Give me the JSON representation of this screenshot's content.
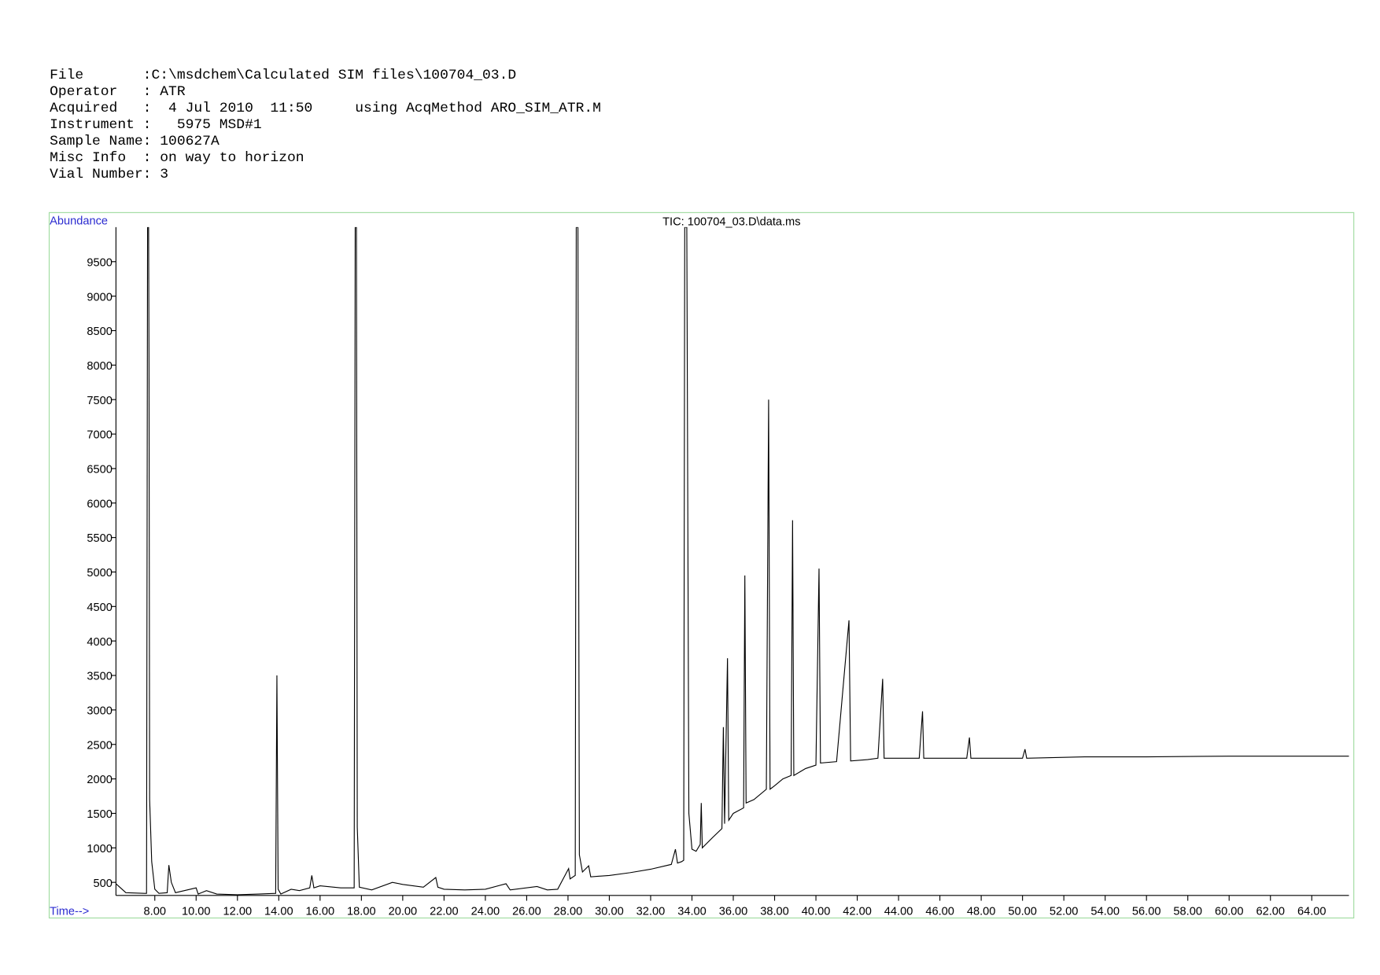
{
  "header": {
    "lines": [
      "File       :C:\\msdchem\\Calculated SIM files\\100704_03.D",
      "Operator   : ATR",
      "Acquired   :  4 Jul 2010  11:50     using AcqMethod ARO_SIM_ATR.M",
      "Instrument :   5975 MSD#1",
      "Sample Name: 100627A",
      "Misc Info  : on way to horizon",
      "Vial Number: 3"
    ]
  },
  "chart_data": {
    "type": "line",
    "title": "TIC: 100704_03.D\\data.ms",
    "y_label": "Abundance",
    "x_label": "Time-->",
    "color": "#000000",
    "x": [
      6.12,
      6.6,
      7.5,
      7.6,
      7.65,
      7.7,
      7.72,
      7.75,
      7.85,
      8.0,
      8.2,
      8.6,
      8.68,
      8.8,
      9.0,
      10.0,
      10.1,
      10.5,
      11.0,
      12.0,
      13.0,
      13.85,
      13.91,
      13.97,
      14.1,
      14.6,
      15.0,
      15.5,
      15.6,
      15.7,
      16.0,
      17.0,
      17.65,
      17.7,
      17.76,
      17.8,
      17.9,
      18.5,
      19.5,
      20.0,
      21.0,
      21.6,
      21.7,
      22.0,
      23.0,
      24.0,
      25.0,
      25.2,
      26.5,
      27.0,
      27.5,
      28.03,
      28.1,
      28.35,
      28.4,
      28.48,
      28.55,
      28.7,
      29.0,
      29.1,
      30.0,
      31.0,
      32.0,
      33.0,
      33.2,
      33.3,
      33.5,
      33.6,
      33.65,
      33.75,
      33.85,
      34.0,
      34.2,
      34.4,
      34.45,
      34.5,
      35.0,
      35.45,
      35.52,
      35.58,
      35.72,
      35.78,
      36.0,
      36.5,
      36.56,
      36.62,
      37.0,
      37.6,
      37.71,
      37.78,
      38.0,
      38.4,
      38.8,
      38.87,
      38.93,
      39.5,
      40.0,
      40.15,
      40.22,
      41.0,
      41.6,
      41.68,
      42.5,
      43.0,
      43.23,
      43.3,
      45.0,
      45.16,
      45.22,
      47.3,
      47.43,
      47.5,
      50.0,
      50.12,
      50.2,
      53.0,
      56.0,
      60.0,
      65.8
    ],
    "values": [
      480,
      350,
      340,
      340,
      10000,
      10000,
      8000,
      1700,
      800,
      400,
      340,
      350,
      750,
      500,
      350,
      420,
      330,
      380,
      330,
      320,
      330,
      340,
      3500,
      400,
      330,
      400,
      380,
      420,
      600,
      420,
      450,
      420,
      420,
      10000,
      10000,
      1300,
      430,
      390,
      500,
      470,
      430,
      570,
      430,
      400,
      390,
      400,
      480,
      390,
      440,
      390,
      400,
      700,
      550,
      600,
      10000,
      10000,
      900,
      650,
      740,
      580,
      600,
      640,
      690,
      760,
      980,
      780,
      800,
      820,
      10000,
      10000,
      1500,
      980,
      950,
      1050,
      1650,
      1000,
      1150,
      1280,
      2750,
      1350,
      3750,
      1400,
      1500,
      1580,
      4950,
      1650,
      1700,
      1850,
      7500,
      1850,
      1900,
      2000,
      2050,
      5750,
      2050,
      2150,
      2200,
      5050,
      2230,
      2250,
      4300,
      2260,
      2280,
      2300,
      3450,
      2300,
      2300,
      2980,
      2300,
      2300,
      2600,
      2300,
      2300,
      2430,
      2300,
      2320,
      2320,
      2330,
      2330
    ],
    "xlim": [
      6.12,
      65.8
    ],
    "ylim": [
      310,
      10000
    ],
    "xticks": [
      {
        "value": 8,
        "label": "8.00"
      },
      {
        "value": 10,
        "label": "10.00"
      },
      {
        "value": 12,
        "label": "12.00"
      },
      {
        "value": 14,
        "label": "14.00"
      },
      {
        "value": 16,
        "label": "16.00"
      },
      {
        "value": 18,
        "label": "18.00"
      },
      {
        "value": 20,
        "label": "20.00"
      },
      {
        "value": 22,
        "label": "22.00"
      },
      {
        "value": 24,
        "label": "24.00"
      },
      {
        "value": 26,
        "label": "26.00"
      },
      {
        "value": 28,
        "label": "28.00"
      },
      {
        "value": 30,
        "label": "30.00"
      },
      {
        "value": 32,
        "label": "32.00"
      },
      {
        "value": 34,
        "label": "34.00"
      },
      {
        "value": 36,
        "label": "36.00"
      },
      {
        "value": 38,
        "label": "38.00"
      },
      {
        "value": 40,
        "label": "40.00"
      },
      {
        "value": 42,
        "label": "42.00"
      },
      {
        "value": 44,
        "label": "44.00"
      },
      {
        "value": 46,
        "label": "46.00"
      },
      {
        "value": 48,
        "label": "48.00"
      },
      {
        "value": 50,
        "label": "50.00"
      },
      {
        "value": 52,
        "label": "52.00"
      },
      {
        "value": 54,
        "label": "54.00"
      },
      {
        "value": 56,
        "label": "56.00"
      },
      {
        "value": 58,
        "label": "58.00"
      },
      {
        "value": 60,
        "label": "60.00"
      },
      {
        "value": 62,
        "label": "62.00"
      },
      {
        "value": 64,
        "label": "64.00"
      }
    ],
    "yticks": [
      500,
      1000,
      1500,
      2000,
      2500,
      3000,
      3500,
      4000,
      4500,
      5000,
      5500,
      6000,
      6500,
      7000,
      7500,
      8000,
      8500,
      9000,
      9500
    ],
    "grid": false
  }
}
